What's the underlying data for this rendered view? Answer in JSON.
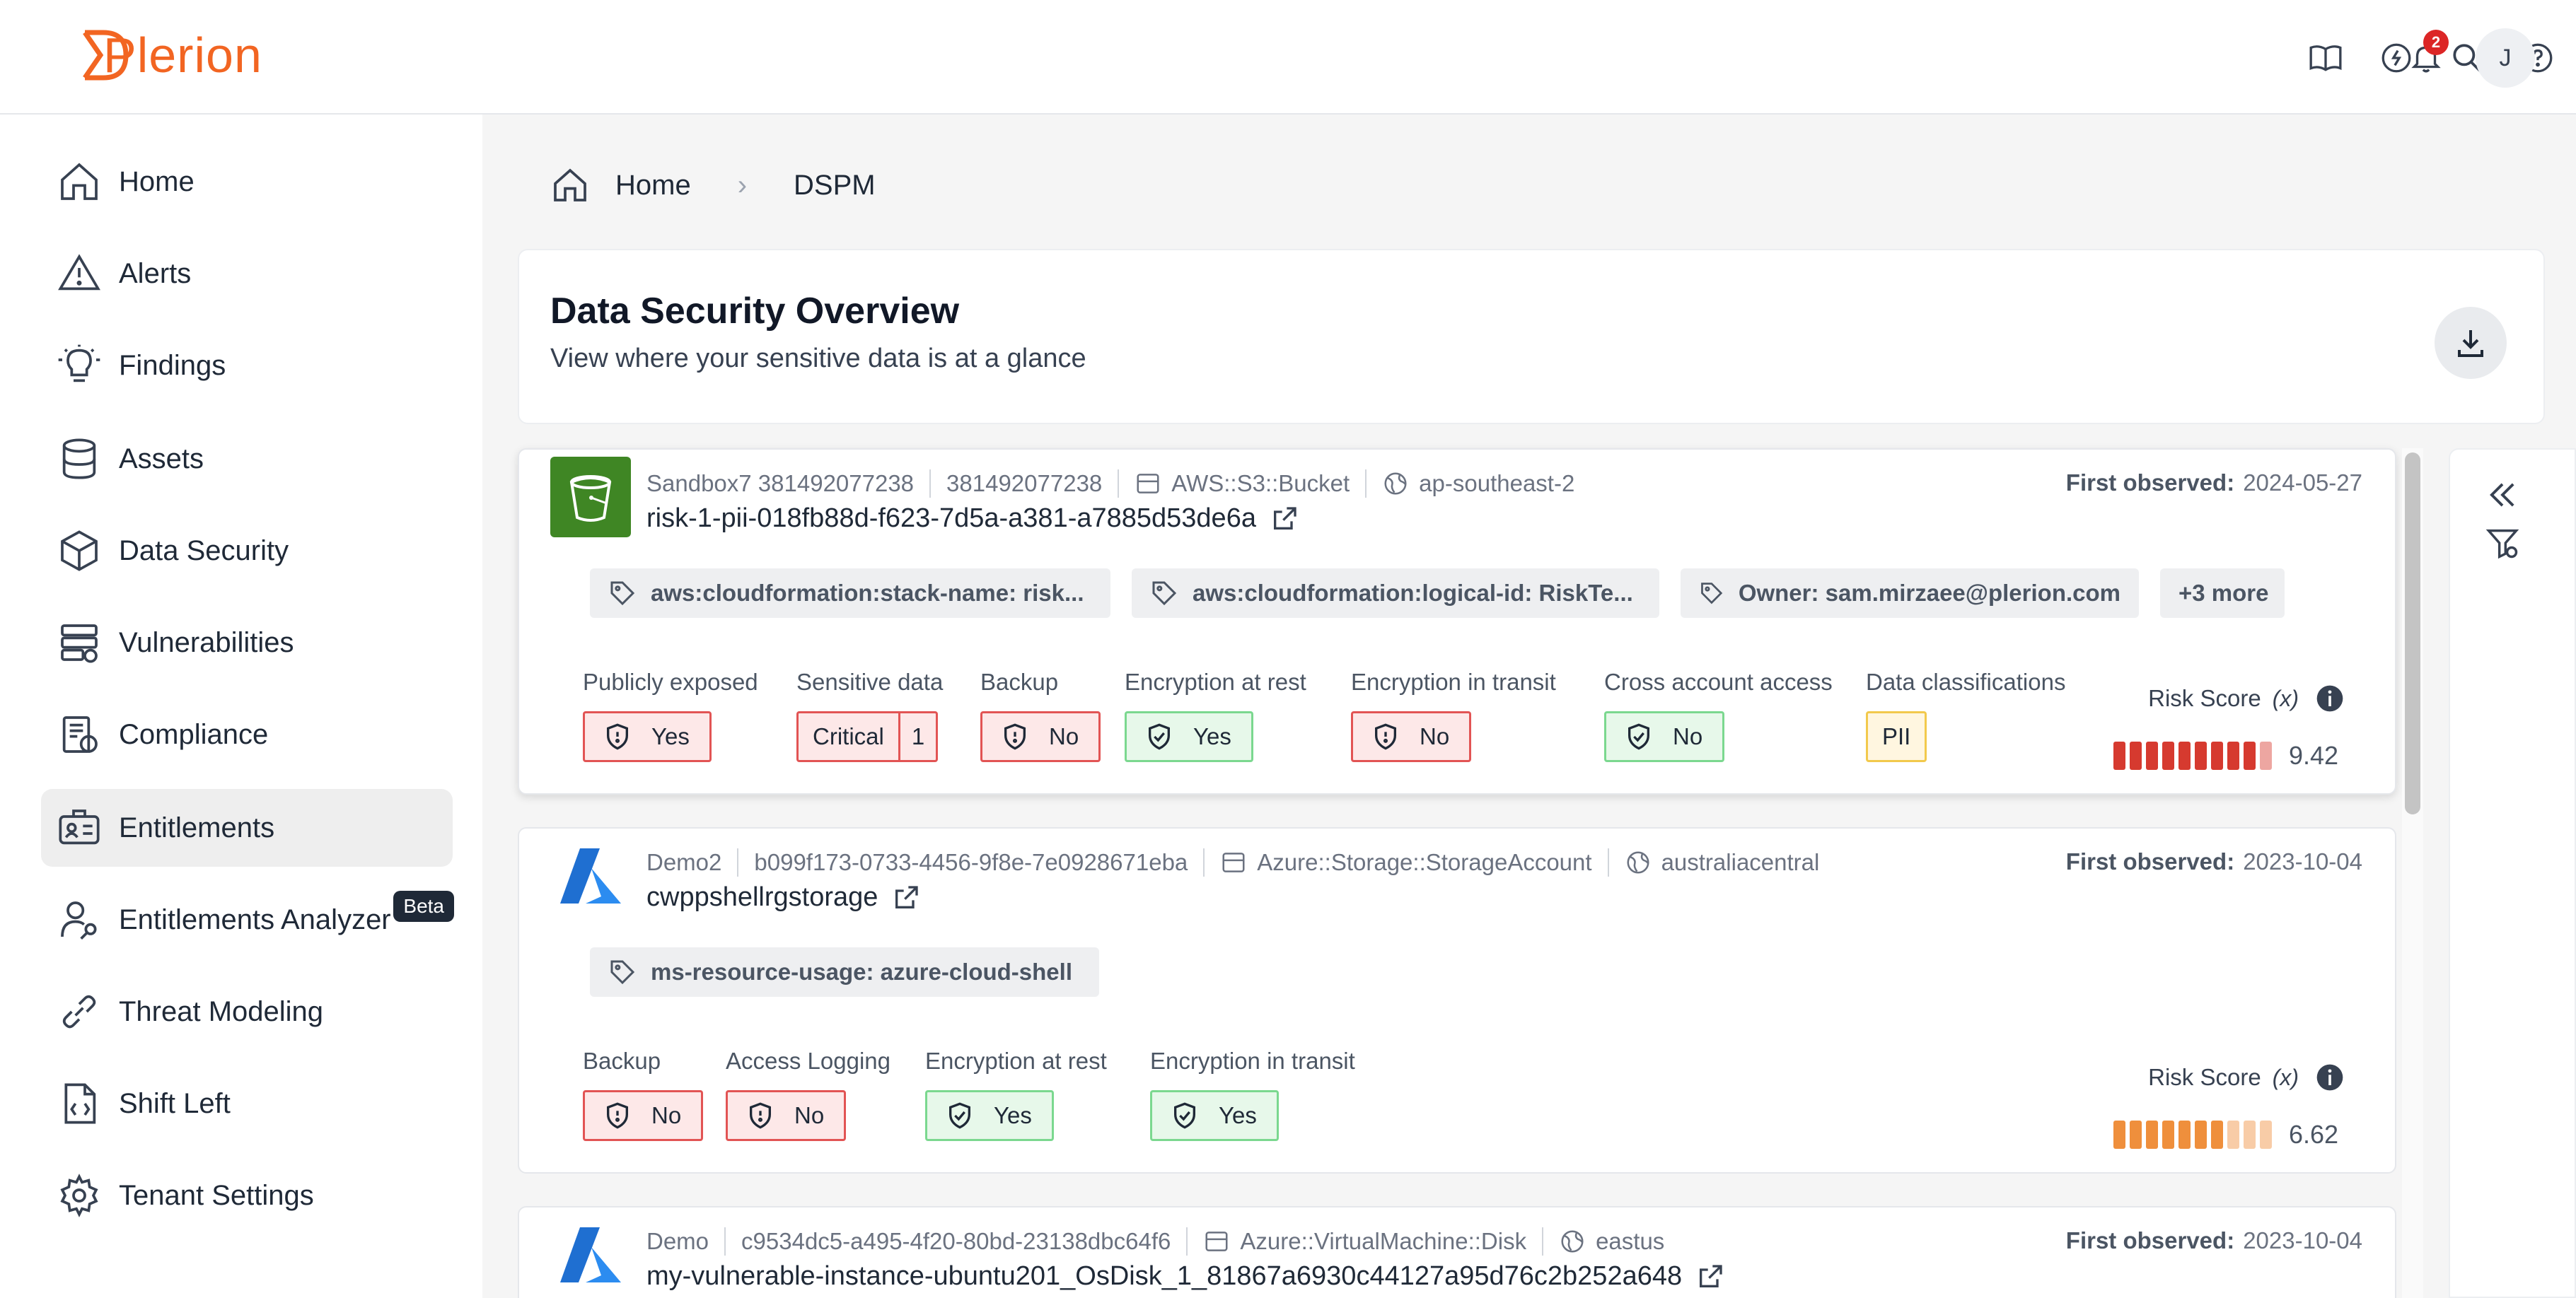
{
  "brand": {
    "name": "Plerion",
    "accent": "#f26522"
  },
  "topbar": {
    "icons": [
      "book-icon",
      "chat-icon",
      "search-icon",
      "help-icon",
      "bell-icon"
    ],
    "notifications_count": "2",
    "avatar_initial": "J"
  },
  "sidebar": {
    "items": [
      {
        "label": "Home",
        "icon": "home-icon"
      },
      {
        "label": "Alerts",
        "icon": "alert-icon"
      },
      {
        "label": "Findings",
        "icon": "lightbulb-icon"
      },
      {
        "label": "Assets",
        "icon": "database-icon"
      },
      {
        "label": "Data Security",
        "icon": "cube-icon"
      },
      {
        "label": "Vulnerabilities",
        "icon": "server-icon"
      },
      {
        "label": "Compliance",
        "icon": "compliance-icon"
      },
      {
        "label": "Entitlements",
        "icon": "id-card-icon",
        "active": true
      },
      {
        "label": "Entitlements Analyzer",
        "icon": "user-key-icon",
        "badge": "Beta"
      },
      {
        "label": "Threat Modeling",
        "icon": "chain-icon"
      },
      {
        "label": "Shift Left",
        "icon": "code-file-icon"
      },
      {
        "label": "Tenant Settings",
        "icon": "gear-icon"
      }
    ]
  },
  "breadcrumb": {
    "home": "Home",
    "current": "DSPM"
  },
  "overview": {
    "title": "Data Security Overview",
    "subtitle": "View where your sensitive data is at a glance"
  },
  "assets": [
    {
      "provider": "aws",
      "account": "Sandbox7 381492077238",
      "account_id": "381492077238",
      "type": "AWS::S3::Bucket",
      "region": "ap-southeast-2",
      "first_observed_label": "First observed:",
      "first_observed": "2024-05-27",
      "name": "risk-1-pii-018fb88d-f623-7d5a-a381-a7885d53de6a",
      "tags": [
        "aws:cloudformation:stack-name: risk...",
        "aws:cloudformation:logical-id: RiskTe...",
        "Owner: sam.mirzaee@plerion.com",
        "+3 more"
      ],
      "props": [
        {
          "label": "Publicly exposed",
          "value": "Yes",
          "status": "red"
        },
        {
          "label": "Sensitive data",
          "value": "Critical",
          "count": "1",
          "status": "split"
        },
        {
          "label": "Backup",
          "value": "No",
          "status": "red"
        },
        {
          "label": "Encryption at rest",
          "value": "Yes",
          "status": "green"
        },
        {
          "label": "Encryption in transit",
          "value": "No",
          "status": "red"
        },
        {
          "label": "Cross account access",
          "value": "No",
          "status": "green"
        },
        {
          "label": "Data classifications",
          "value": "PII",
          "status": "yellow"
        }
      ],
      "risk_label": "Risk Score",
      "risk_fx": "(x)",
      "risk_score": "9.42",
      "risk_color": "#d63a2f"
    },
    {
      "provider": "azure",
      "account": "Demo2",
      "account_id": "b099f173-0733-4456-9f8e-7e0928671eba",
      "type": "Azure::Storage::StorageAccount",
      "region": "australiacentral",
      "first_observed_label": "First observed:",
      "first_observed": "2023-10-04",
      "name": "cwppshellrgstorage",
      "tags": [
        "ms-resource-usage: azure-cloud-shell"
      ],
      "props": [
        {
          "label": "Backup",
          "value": "No",
          "status": "red"
        },
        {
          "label": "Access Logging",
          "value": "No",
          "status": "red"
        },
        {
          "label": "Encryption at rest",
          "value": "Yes",
          "status": "green"
        },
        {
          "label": "Encryption in transit",
          "value": "Yes",
          "status": "green"
        }
      ],
      "risk_label": "Risk Score",
      "risk_fx": "(x)",
      "risk_score": "6.62",
      "risk_color": "#ef8f3c"
    },
    {
      "provider": "azure",
      "account": "Demo",
      "account_id": "c9534dc5-a495-4f20-80bd-23138dbc64f6",
      "type": "Azure::VirtualMachine::Disk",
      "region": "eastus",
      "first_observed_label": "First observed:",
      "first_observed": "2023-10-04",
      "name": "my-vulnerable-instance-ubuntu201_OsDisk_1_81867a6930c44127a95d76c2b252a648"
    }
  ]
}
